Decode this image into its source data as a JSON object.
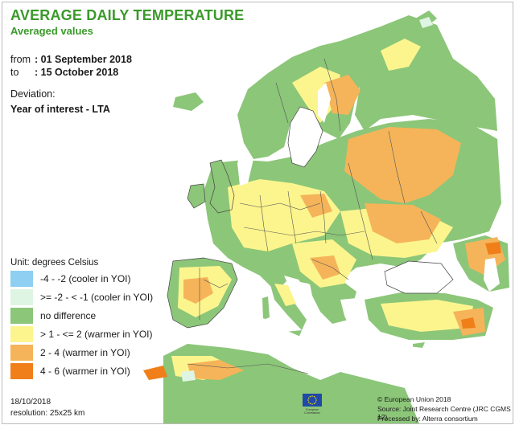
{
  "title": "AVERAGE DAILY TEMPERATURE",
  "subtitle": "Averaged values",
  "period": {
    "from_label": "from",
    "from_value": ": 01 September 2018",
    "to_label": "to",
    "to_value": ": 15 October 2018"
  },
  "deviation_label": "Deviation:",
  "comparison": "Year of interest - LTA",
  "legend": {
    "unit": "Unit: degrees Celsius",
    "items": [
      {
        "label": "-4 - -2 (cooler in YOI)",
        "color": "#8ecff2"
      },
      {
        "label": ">= -2 - < -1 (cooler in YOI)",
        "color": "#dff5e3"
      },
      {
        "label": "no difference",
        "color": "#8cc679"
      },
      {
        "label": "> 1 - <= 2 (warmer in YOI)",
        "color": "#fcf58e"
      },
      {
        "label": "2 - 4 (warmer in YOI)",
        "color": "#f5b459"
      },
      {
        "label": "4 - 6 (warmer in YOI)",
        "color": "#f07f1a"
      }
    ]
  },
  "footer": {
    "date": "18/10/2018",
    "resolution": "resolution: 25x25 km",
    "copyright": "© European Union 2018",
    "source": "Source: Joint Research Centre (JRC CGMS 12)",
    "processed": "Processed by: Alterra consortium"
  },
  "logo": {
    "caption_line1": "European",
    "caption_line2": "Commission",
    "flag_color": "#1f4aa8",
    "star_color": "#ffdd00"
  },
  "colors": {
    "sea": "#ffffff",
    "borders": "#555555",
    "title_green": "#3a9a2a"
  }
}
